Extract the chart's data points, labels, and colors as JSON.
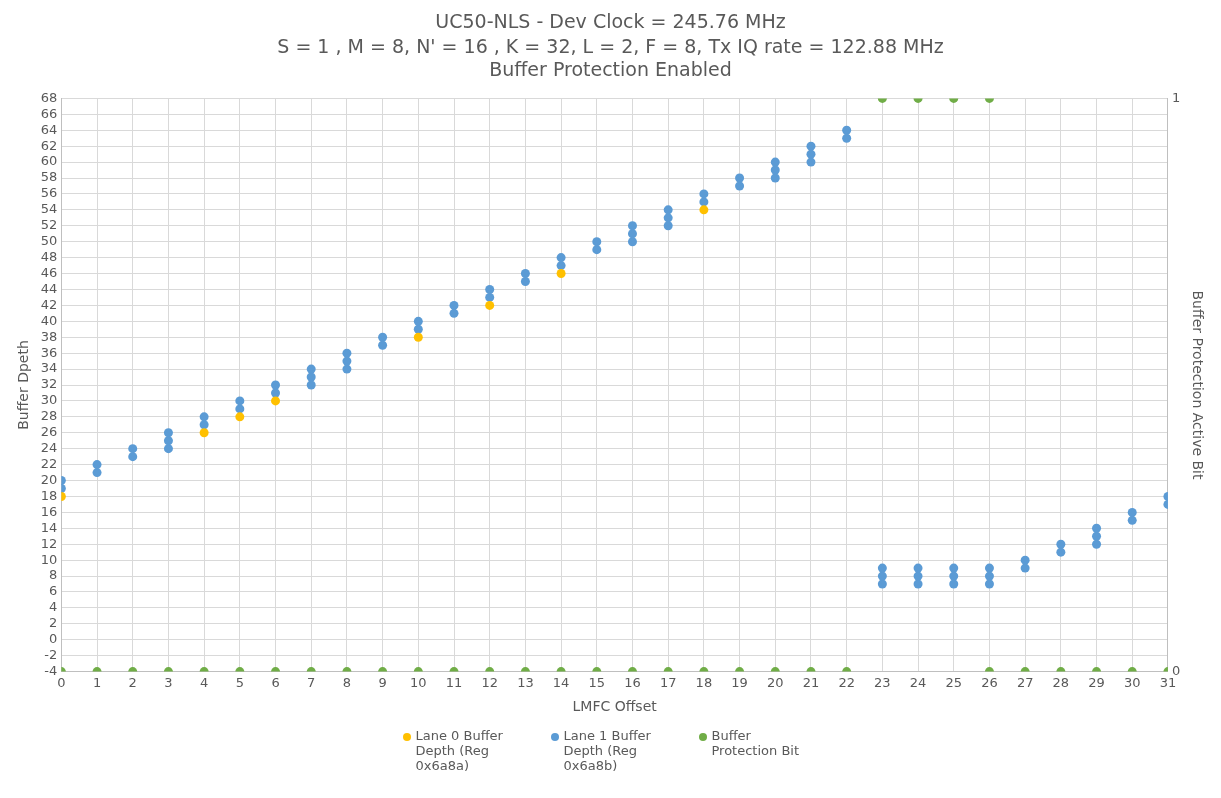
{
  "chart_data": {
    "type": "scatter",
    "title": "UC50-NLS - Dev Clock = 245.76 MHz",
    "subtitle": "S = 1 , M = 8, N' = 16 , K = 32, L = 2, F = 8, Tx IQ rate = 122.88 MHz\nBuffer Protection Enabled",
    "xlabel": "LMFC Offset",
    "ylabel": "Buffer Dpeth",
    "y2label": "Buffer Protection Active Bit",
    "xlim": [
      0,
      31
    ],
    "xticks": [
      0,
      1,
      2,
      3,
      4,
      5,
      6,
      7,
      8,
      9,
      10,
      11,
      12,
      13,
      14,
      15,
      16,
      17,
      18,
      19,
      20,
      21,
      22,
      23,
      24,
      25,
      26,
      27,
      28,
      29,
      30,
      31
    ],
    "ylim": [
      -4,
      68
    ],
    "yticks": [
      -4,
      -2,
      0,
      2,
      4,
      6,
      8,
      10,
      12,
      14,
      16,
      18,
      20,
      22,
      24,
      26,
      28,
      30,
      32,
      34,
      36,
      38,
      40,
      42,
      44,
      46,
      48,
      50,
      52,
      54,
      56,
      58,
      60,
      62,
      64,
      66,
      68
    ],
    "y2lim": [
      0,
      1
    ],
    "y2ticks": [
      0,
      1
    ],
    "grid": true,
    "legend": "bottom",
    "marker": "circle",
    "series": [
      {
        "name": "Lane 0 Buffer Depth (Reg 0x6a8a)",
        "color": "#ffc000",
        "x": [
          0,
          4,
          5,
          6,
          10,
          12,
          14,
          18
        ],
        "values": [
          18,
          26,
          28,
          30,
          38,
          42,
          46,
          54
        ]
      },
      {
        "name": "Lane 1 Buffer Depth (Reg 0x6a8b)",
        "color": "#5b9bd5",
        "x": [
          0,
          0,
          1,
          1,
          2,
          2,
          3,
          3,
          3,
          4,
          4,
          5,
          5,
          6,
          6,
          7,
          7,
          7,
          8,
          8,
          8,
          9,
          9,
          10,
          10,
          11,
          11,
          12,
          12,
          13,
          13,
          14,
          14,
          15,
          15,
          16,
          16,
          16,
          17,
          17,
          17,
          18,
          18,
          19,
          19,
          20,
          20,
          20,
          21,
          21,
          21,
          22,
          22,
          23,
          23,
          23,
          24,
          24,
          24,
          25,
          25,
          25,
          26,
          26,
          26,
          27,
          27,
          28,
          28,
          29,
          29,
          29,
          30,
          30,
          31,
          31
        ],
        "values": [
          19,
          20,
          21,
          22,
          23,
          24,
          24,
          25,
          26,
          27,
          28,
          29,
          30,
          31,
          32,
          32,
          33,
          34,
          34,
          35,
          36,
          37,
          38,
          39,
          40,
          41,
          42,
          43,
          44,
          45,
          46,
          47,
          48,
          49,
          50,
          50,
          51,
          52,
          52,
          53,
          54,
          55,
          56,
          57,
          58,
          58,
          59,
          60,
          60,
          61,
          62,
          63,
          64,
          7,
          8,
          9,
          7,
          8,
          9,
          7,
          8,
          9,
          7,
          8,
          9,
          9,
          10,
          11,
          12,
          12,
          13,
          14,
          15,
          16,
          17,
          18
        ]
      },
      {
        "name": "Buffer Protection Bit",
        "color": "#70ad47",
        "axis": "y2",
        "x": [
          0,
          1,
          2,
          3,
          4,
          5,
          6,
          7,
          8,
          9,
          10,
          11,
          12,
          13,
          14,
          15,
          16,
          17,
          18,
          19,
          20,
          21,
          22,
          23,
          24,
          25,
          26,
          26,
          27,
          28,
          29,
          30,
          31
        ],
        "values": [
          0,
          0,
          0,
          0,
          0,
          0,
          0,
          0,
          0,
          0,
          0,
          0,
          0,
          0,
          0,
          0,
          0,
          0,
          0,
          0,
          0,
          0,
          0,
          1,
          1,
          1,
          1,
          0,
          0,
          0,
          0,
          0,
          0
        ]
      }
    ]
  }
}
